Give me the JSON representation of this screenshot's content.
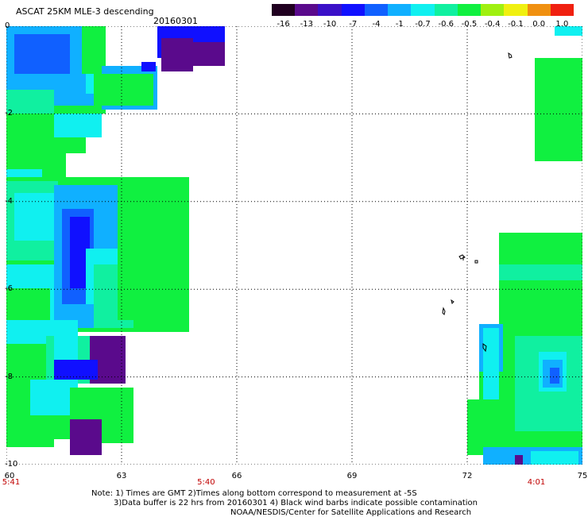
{
  "header": {
    "title": "ASCAT 25KM MLE-3 descending",
    "date": "20160301"
  },
  "colorbar": {
    "labels": [
      "-16",
      "-13",
      "-10",
      "-7",
      "-4",
      "-1",
      "-0.7",
      "-0.6",
      "-0.5",
      "-0.4",
      "-0.1",
      "0.0",
      "1.0"
    ],
    "colors": [
      "#200020",
      "#5a0a8c",
      "#3a10c8",
      "#1010ff",
      "#1060ff",
      "#10b0ff",
      "#10f0f0",
      "#10f0a0",
      "#10f040",
      "#a0f010",
      "#f0f010",
      "#f09010",
      "#f02010"
    ]
  },
  "axes": {
    "y_ticks": [
      "0",
      "-2",
      "-4",
      "-6",
      "-8",
      "-10"
    ],
    "x_ticks": [
      "60",
      "63",
      "66",
      "69",
      "72",
      "75"
    ]
  },
  "times": [
    {
      "label": "5:41",
      "x": 60
    },
    {
      "label": "5:40",
      "x": 65.2
    },
    {
      "label": "4:01",
      "x": 73.8
    }
  ],
  "notes": {
    "line1": "Note: 1) Times are GMT 2)Times along bottom correspond to measurement at -5S",
    "line2": "3)Data buffer is 22 hrs from 20160301 4) Black wind barbs indicate possible contamination",
    "line3": "NOAA/NESDIS/Center for Satellite Applications and Research"
  }
}
